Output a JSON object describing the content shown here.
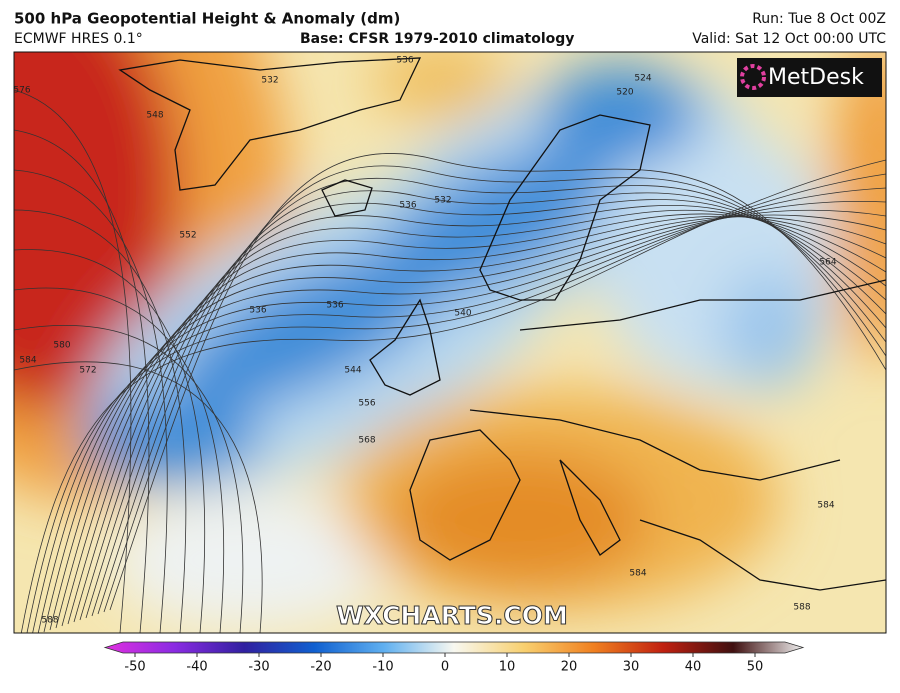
{
  "header": {
    "title": "500 hPa Geopotential Height & Anomaly (dm)",
    "model": "ECMWF HRES 0.1°",
    "base": "Base: CFSR 1979-2010 climatology",
    "run": "Run: Tue 8 Oct 00Z",
    "valid": "Valid: Sat 12 Oct 00:00 UTC"
  },
  "logo": "MetDesk",
  "watermark": "WXCHARTS.COM",
  "contour_labels": [
    "532",
    "536",
    "548",
    "552",
    "576",
    "584",
    "580",
    "572",
    "536",
    "536",
    "536",
    "532",
    "540",
    "544",
    "556",
    "568",
    "564",
    "524",
    "520",
    "584",
    "584",
    "588",
    "588"
  ],
  "colorbar": {
    "ticks": [
      -50,
      -40,
      -30,
      -20,
      -10,
      0,
      10,
      20,
      30,
      40,
      50
    ]
  }
}
